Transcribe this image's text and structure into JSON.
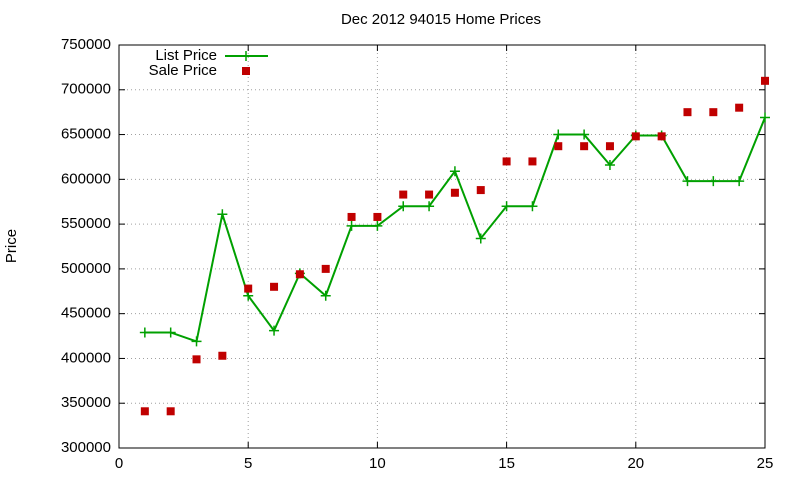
{
  "chart_data": {
    "type": "line",
    "title": "Dec 2012 94015 Home Prices",
    "y_label": "Price",
    "x": [
      1,
      2,
      3,
      4,
      5,
      6,
      7,
      8,
      9,
      10,
      11,
      12,
      13,
      14,
      15,
      16,
      17,
      18,
      19,
      20,
      21,
      22,
      23,
      24,
      25
    ],
    "series": [
      {
        "name": "List Price",
        "color": "#00a000",
        "style": "linespoints",
        "values": [
          429000,
          429000,
          419000,
          561000,
          470000,
          431000,
          495000,
          470000,
          548000,
          548000,
          570000,
          570000,
          609000,
          534000,
          570000,
          570000,
          650000,
          650000,
          616000,
          649000,
          649000,
          598000,
          598000,
          598000,
          669000
        ]
      },
      {
        "name": "Sale Price",
        "color": "#c00000",
        "style": "points",
        "values": [
          341000,
          341000,
          399000,
          403000,
          478000,
          480000,
          494000,
          500000,
          558000,
          558000,
          583000,
          583000,
          585000,
          588000,
          620000,
          620000,
          637000,
          637000,
          637000,
          648000,
          648000,
          675000,
          675000,
          680000,
          710000
        ]
      }
    ],
    "xlim": [
      0,
      25
    ],
    "xticks": [
      0,
      5,
      10,
      15,
      20,
      25
    ],
    "ylim": [
      300000,
      750000
    ],
    "yticks": [
      300000,
      350000,
      400000,
      450000,
      500000,
      550000,
      600000,
      650000,
      700000,
      750000
    ],
    "grid": true,
    "legend": "top-left"
  }
}
